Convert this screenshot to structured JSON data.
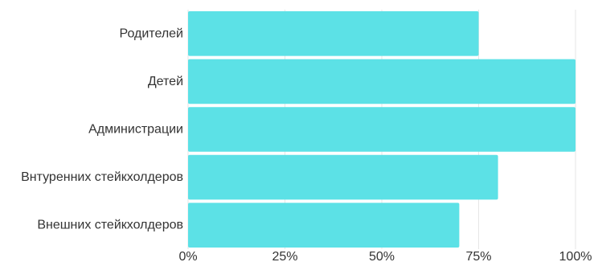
{
  "chart_data": {
    "type": "bar",
    "orientation": "horizontal",
    "title": "",
    "xlabel": "",
    "ylabel": "",
    "categories": [
      "Родителей",
      "Детей",
      "Администрации",
      "Внтуренних стейкхолдеров",
      "Внешних стейкхолдеров"
    ],
    "values": [
      75,
      100,
      100,
      80,
      70
    ],
    "xlim": [
      0,
      100
    ],
    "x_ticks": [
      "0%",
      "25%",
      "50%",
      "75%",
      "100%"
    ],
    "grid": true,
    "legend": "none",
    "bar_color": "#5ce1e6"
  }
}
